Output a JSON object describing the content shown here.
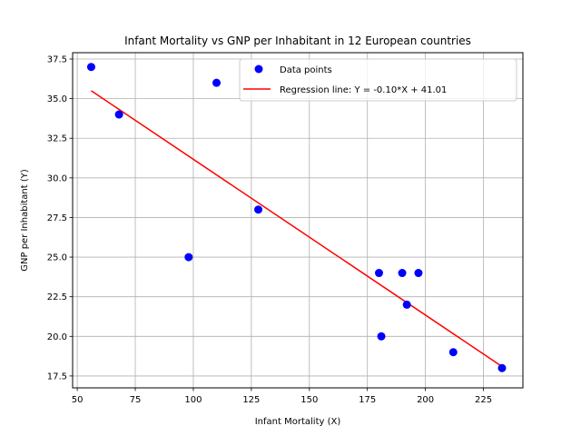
{
  "chart_data": {
    "type": "scatter",
    "title": "Infant Mortality vs GNP per Inhabitant in 12 European countries",
    "xlabel": "Infant Mortality (X)",
    "ylabel": "GNP per Inhabitant (Y)",
    "xlim": [
      48,
      242
    ],
    "ylim": [
      16.75,
      37.9
    ],
    "xticks": [
      50,
      75,
      100,
      125,
      150,
      175,
      200,
      225
    ],
    "yticks": [
      17.5,
      20.0,
      22.5,
      25.0,
      27.5,
      30.0,
      32.5,
      35.0,
      37.5
    ],
    "xtick_labels": [
      "50",
      "75",
      "100",
      "125",
      "150",
      "175",
      "200",
      "225"
    ],
    "ytick_labels": [
      "17.5",
      "20.0",
      "22.5",
      "25.0",
      "27.5",
      "30.0",
      "32.5",
      "35.0",
      "37.5"
    ],
    "grid": true,
    "legend_position": "upper right",
    "series": [
      {
        "name": "Data points",
        "type": "scatter",
        "color": "#0000ff",
        "x": [
          56,
          68,
          110,
          128,
          98,
          180,
          190,
          197,
          181,
          192,
          212,
          233
        ],
        "y": [
          37,
          34,
          36,
          28,
          25,
          24,
          24,
          24,
          20,
          22,
          19,
          18
        ]
      },
      {
        "name": "Regression line: Y = -0.10*X + 41.01",
        "type": "line",
        "color": "#ff0000",
        "slope": -0.1,
        "intercept": 41.01,
        "x": [
          56,
          233
        ],
        "y": [
          35.5,
          18.1
        ]
      }
    ]
  }
}
